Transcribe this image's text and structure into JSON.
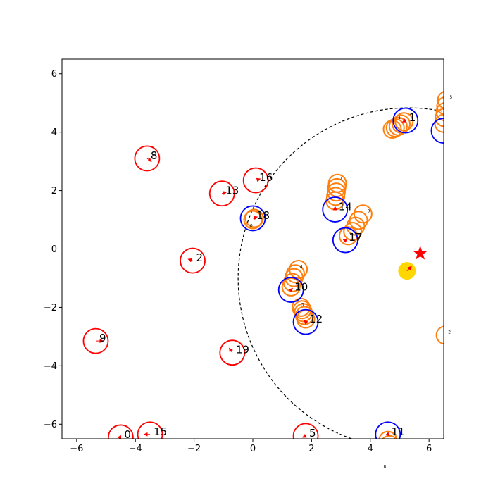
{
  "chart_data": {
    "type": "scatter",
    "xlim": [
      -6.5,
      6.5
    ],
    "ylim": [
      -6.5,
      6.5
    ],
    "xticks": [
      -6,
      -4,
      -2,
      0,
      2,
      4,
      6
    ],
    "yticks": [
      -6,
      -4,
      -2,
      0,
      2,
      4,
      6
    ],
    "xtick_labels": [
      "−6",
      "−4",
      "−2",
      "0",
      "2",
      "4",
      "6"
    ],
    "ytick_labels": [
      "−6",
      "−4",
      "−2",
      "0",
      "2",
      "4",
      "6"
    ],
    "grid": false,
    "sensing_circle": {
      "center": [
        5.3,
        -1.0
      ],
      "radius": 5.8,
      "style": "dashed",
      "color": "#000000"
    },
    "goal_star": {
      "x": 5.7,
      "y": -0.15,
      "color": "#ff0000"
    },
    "robot": {
      "x": 5.25,
      "y": -0.75,
      "color": "#ffd700",
      "heading": [
        5.4,
        -0.6
      ]
    },
    "agents": [
      {
        "label": "0",
        "x": -4.5,
        "y": -6.45,
        "color": "#ff0000",
        "hx": -4.6,
        "hy": -6.45
      },
      {
        "label": "1",
        "x": 5.2,
        "y": 4.4,
        "color": "#0000ff",
        "hx": 5.1,
        "hy": 4.35
      },
      {
        "label": "2",
        "x": -2.05,
        "y": -0.4,
        "color": "#ff0000",
        "hx": -2.2,
        "hy": -0.35
      },
      {
        "label": "5",
        "x": 1.8,
        "y": -6.4,
        "color": "#ff0000",
        "hx": 1.7,
        "hy": -6.45
      },
      {
        "label": "8",
        "x": -3.6,
        "y": 3.1,
        "color": "#ff0000",
        "hx": -3.45,
        "hy": 3.0
      },
      {
        "label": "9",
        "x": -5.35,
        "y": -3.15,
        "color": "#ff0000",
        "hx": -5.1,
        "hy": -3.15
      },
      {
        "label": "10",
        "x": 1.3,
        "y": -1.4,
        "color": "#0000ff",
        "hx": 1.35,
        "hy": -1.35
      },
      {
        "label": "11",
        "x": 4.6,
        "y": -6.35,
        "color": "#0000ff",
        "hx": 4.65,
        "hy": -6.4
      },
      {
        "label": "12",
        "x": 1.8,
        "y": -2.5,
        "color": "#0000ff",
        "hx": 1.75,
        "hy": -2.45
      },
      {
        "label": "13",
        "x": -1.05,
        "y": 1.9,
        "color": "#ff0000",
        "hx": -0.9,
        "hy": 1.95
      },
      {
        "label": "14",
        "x": 2.8,
        "y": 1.35,
        "color": "#0000ff",
        "hx": 2.8,
        "hy": 1.45
      },
      {
        "label": "15",
        "x": -3.5,
        "y": -6.35,
        "color": "#ff0000",
        "hx": -3.7,
        "hy": -6.35
      },
      {
        "label": "16",
        "x": 0.1,
        "y": 2.35,
        "color": "#ff0000",
        "hx": 0.25,
        "hy": 2.4
      },
      {
        "label": "17",
        "x": 3.15,
        "y": 0.3,
        "color": "#0000ff",
        "hx": 3.2,
        "hy": 0.35
      },
      {
        "label": "18",
        "x": 0.0,
        "y": 1.05,
        "color": "#0000ff",
        "hx": 0.15,
        "hy": 1.1
      },
      {
        "label": "19",
        "x": -0.7,
        "y": -3.55,
        "color": "#ff0000",
        "hx": -0.8,
        "hy": -3.4
      }
    ],
    "extra_blue_circles": [
      {
        "x": 6.5,
        "y": 4.05,
        "color": "#0000ff"
      }
    ],
    "predicted_trajectories": [
      {
        "label": "1",
        "color": "#ff7f0e",
        "points": [
          [
            4.75,
            4.1
          ],
          [
            4.85,
            4.15
          ],
          [
            4.95,
            4.2
          ],
          [
            5.05,
            4.28
          ],
          [
            5.15,
            4.36
          ]
        ]
      },
      {
        "label": "7",
        "color": "#ff7f0e",
        "points": [
          [
            2.8,
            1.65
          ],
          [
            2.82,
            1.8
          ],
          [
            2.84,
            1.95
          ],
          [
            2.86,
            2.1
          ],
          [
            2.88,
            2.25
          ]
        ]
      },
      {
        "label": "9",
        "color": "#ff7f0e",
        "points": [
          [
            3.25,
            0.45
          ],
          [
            3.4,
            0.6
          ],
          [
            3.5,
            0.78
          ],
          [
            3.6,
            0.98
          ],
          [
            3.75,
            1.2
          ]
        ]
      },
      {
        "label": "4",
        "color": "#ff7f0e",
        "points": [
          [
            1.3,
            -1.3
          ],
          [
            1.35,
            -1.15
          ],
          [
            1.4,
            -0.98
          ],
          [
            1.45,
            -0.85
          ],
          [
            1.55,
            -0.7
          ]
        ]
      },
      {
        "label": "3",
        "color": "#ff7f0e",
        "points": [
          [
            1.8,
            -2.4
          ],
          [
            1.76,
            -2.28
          ],
          [
            1.72,
            -2.18
          ],
          [
            1.68,
            -2.08
          ],
          [
            1.64,
            -2.0
          ]
        ]
      },
      {
        "label": "5",
        "color": "#ff7f0e",
        "points": [
          [
            6.5,
            4.3
          ],
          [
            6.52,
            4.5
          ],
          [
            6.55,
            4.7
          ],
          [
            6.57,
            4.9
          ],
          [
            6.6,
            5.1
          ]
        ]
      },
      {
        "label": "8",
        "color": "#ff7f0e",
        "points": [
          [
            4.6,
            -6.55
          ],
          [
            4.65,
            -6.7
          ],
          [
            4.7,
            -6.85
          ]
        ]
      },
      {
        "label": "0",
        "color": "#ff7f0e",
        "points": [
          [
            0.0,
            1.0
          ],
          [
            0.05,
            1.05
          ]
        ]
      },
      {
        "label": "2",
        "color": "#ff7f0e",
        "points": [
          [
            6.55,
            -2.95
          ]
        ]
      }
    ],
    "tiny_labels": [
      {
        "text": "1",
        "x": 4.95,
        "y": 4.45
      },
      {
        "text": "7",
        "x": 2.95,
        "y": 2.35
      },
      {
        "text": "9",
        "x": 3.9,
        "y": 1.25
      },
      {
        "text": "4",
        "x": 1.6,
        "y": -0.65
      },
      {
        "text": "3",
        "x": 1.65,
        "y": -1.95
      },
      {
        "text": "5",
        "x": 6.7,
        "y": 5.15
      },
      {
        "text": "2",
        "x": 6.65,
        "y": -2.9
      },
      {
        "text": "8",
        "x": 4.45,
        "y": -7.5
      },
      {
        "text": "0",
        "x": -0.1,
        "y": 0.75
      }
    ]
  }
}
